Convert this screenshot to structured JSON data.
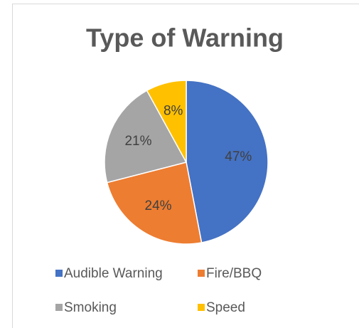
{
  "chart_data": {
    "type": "pie",
    "title": "Type of Warning",
    "categories": [
      "Audible Warning",
      "Fire/BBQ",
      "Smoking",
      "Speed"
    ],
    "values": [
      47,
      24,
      21,
      8
    ],
    "value_labels": [
      "47%",
      "24%",
      "21%",
      "8%"
    ],
    "colors": [
      "#4472c4",
      "#ed7d31",
      "#a5a5a5",
      "#ffc000"
    ],
    "legend": "bottom"
  }
}
